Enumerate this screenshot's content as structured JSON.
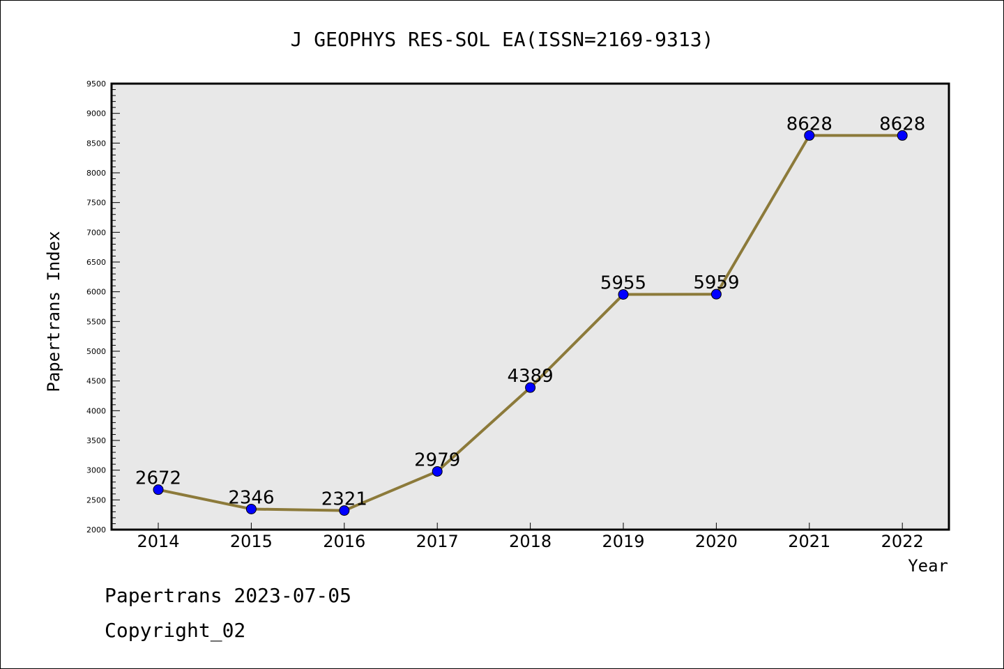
{
  "footer": {
    "line1": "Papertrans 2023-07-05",
    "line2": "Copyright_02"
  },
  "colors": {
    "plot_background": "#e8e8e8",
    "line": "#8c7a3a",
    "marker": "#0000ff"
  },
  "chart_data": {
    "type": "line",
    "title": "J GEOPHYS RES-SOL EA(ISSN=2169-9313)",
    "xlabel": "Year",
    "ylabel": "Papertrans Index",
    "categories": [
      "2014",
      "2015",
      "2016",
      "2017",
      "2018",
      "2019",
      "2020",
      "2021",
      "2022"
    ],
    "series": [
      {
        "values": [
          2672,
          2346,
          2321,
          2979,
          4389,
          5955,
          5959,
          8628,
          8628
        ]
      }
    ],
    "ylim": [
      2000,
      9500
    ],
    "yticks": [
      2000,
      2500,
      3000,
      3500,
      4000,
      4500,
      5000,
      5500,
      6000,
      6500,
      7000,
      7500,
      8000,
      8500,
      9000,
      9500
    ],
    "grid": false,
    "legend": "none"
  }
}
